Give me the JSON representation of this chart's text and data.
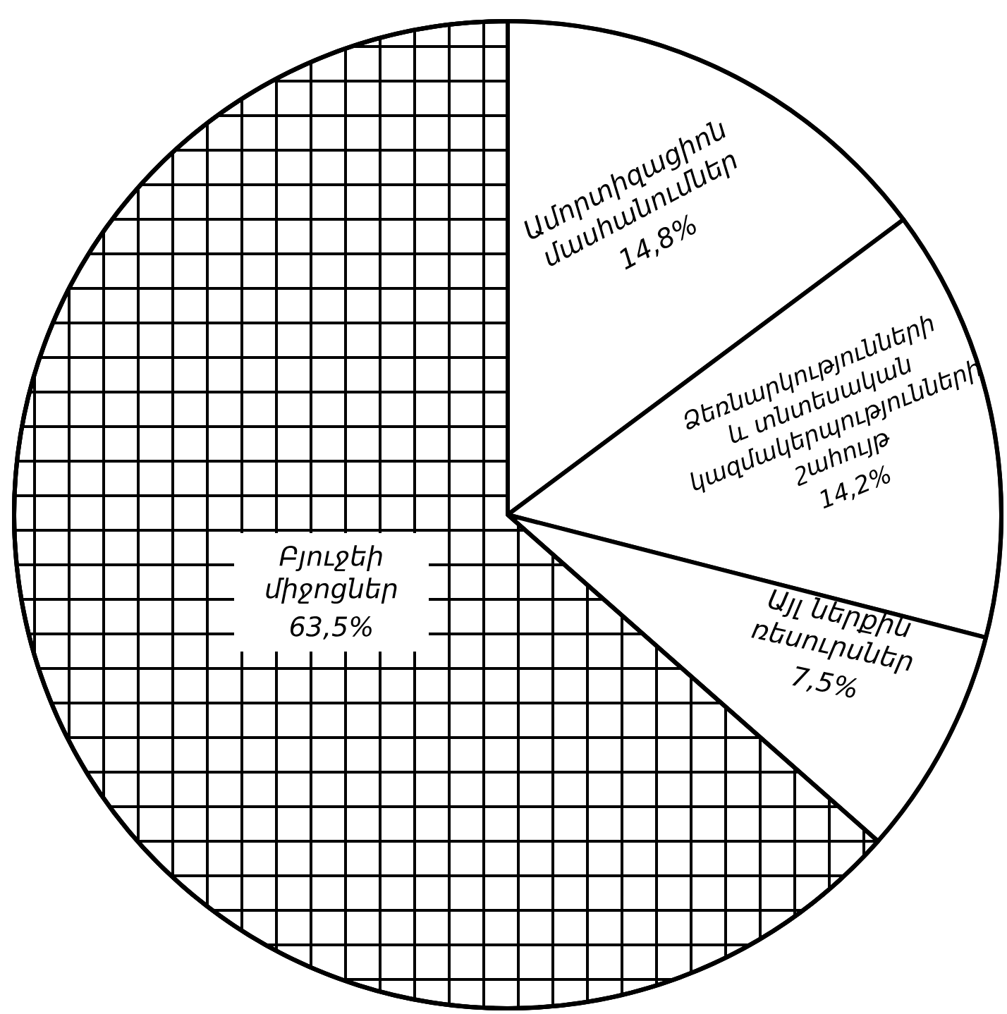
{
  "chart_data": {
    "type": "pie",
    "categories": [
      "Ամորտիզացիոն մասհանումներ",
      "Ձեռնարկությունների և տնտեսական կազմակերպությունների շահույթ",
      "Այլ ներքին ռեսուրսներ",
      "Բյուջեի միջոցներ"
    ],
    "values": [
      14.8,
      14.2,
      7.5,
      63.5
    ],
    "value_labels": [
      "14,8%",
      "14,2%",
      "7,5%",
      "63,5%"
    ],
    "colors": [
      "#ffffff",
      "#ffffff",
      "#ffffff",
      "#ffffff"
    ]
  }
}
